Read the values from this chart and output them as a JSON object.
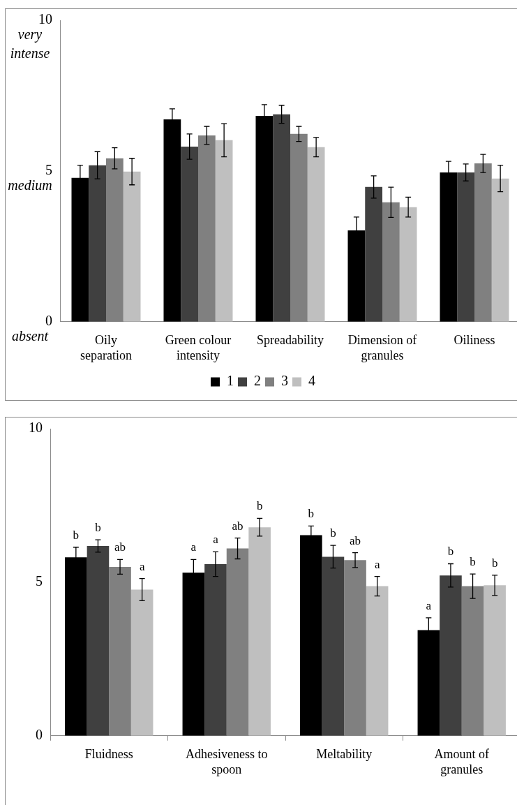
{
  "chart_data": [
    {
      "type": "bar",
      "categories": [
        "Oily separation",
        "Green colour intensity",
        "Spreadability",
        "Dimension of granules",
        "Oiliness"
      ],
      "series": [
        {
          "name": "1",
          "color": "#000000",
          "values": [
            4.77,
            6.71,
            6.83,
            3.03,
            4.95
          ],
          "errors": [
            0.42,
            0.35,
            0.37,
            0.44,
            0.37
          ]
        },
        {
          "name": "2",
          "color": "#404040",
          "values": [
            5.19,
            5.81,
            6.88,
            4.47,
            4.95
          ],
          "errors": [
            0.45,
            0.42,
            0.3,
            0.37,
            0.28
          ]
        },
        {
          "name": "3",
          "color": "#808080",
          "values": [
            5.42,
            6.18,
            6.23,
            3.96,
            5.25
          ],
          "errors": [
            0.35,
            0.3,
            0.25,
            0.5,
            0.3
          ]
        },
        {
          "name": "4",
          "color": "#bfbfbf",
          "values": [
            4.98,
            6.02,
            5.79,
            3.8,
            4.75
          ],
          "errors": [
            0.44,
            0.55,
            0.32,
            0.33,
            0.44
          ]
        }
      ],
      "ylim": [
        0,
        10
      ],
      "yticks": [
        0,
        5,
        10
      ],
      "grid": false,
      "legend": "bottom",
      "annotations": [
        "very intense",
        "medium",
        "absent"
      ]
    },
    {
      "type": "bar",
      "categories": [
        "Fluidness",
        "Adhesiveness to spoon",
        "Meltability",
        "Amount of granules"
      ],
      "series": [
        {
          "color": "#000000",
          "values": [
            5.81,
            5.31,
            6.53,
            3.44
          ],
          "errors": [
            0.33,
            0.43,
            0.3,
            0.4
          ],
          "value_labels": [
            "b",
            "a",
            "b",
            "a"
          ]
        },
        {
          "color": "#404040",
          "values": [
            6.18,
            5.59,
            5.83,
            5.22
          ],
          "errors": [
            0.2,
            0.4,
            0.37,
            0.38
          ],
          "value_labels": [
            "b",
            "a",
            "b",
            "b"
          ]
        },
        {
          "color": "#808080",
          "values": [
            5.5,
            6.1,
            5.72,
            4.87
          ],
          "errors": [
            0.24,
            0.34,
            0.24,
            0.4
          ],
          "value_labels": [
            "ab",
            "ab",
            "ab",
            "b"
          ]
        },
        {
          "color": "#bfbfbf",
          "values": [
            4.76,
            6.79,
            4.87,
            4.9
          ],
          "errors": [
            0.36,
            0.29,
            0.32,
            0.33
          ],
          "value_labels": [
            "a",
            "b",
            "a",
            "b"
          ]
        }
      ],
      "ylim": [
        0,
        10
      ],
      "yticks": [
        0,
        5,
        10
      ],
      "grid": false,
      "legend": false
    }
  ]
}
